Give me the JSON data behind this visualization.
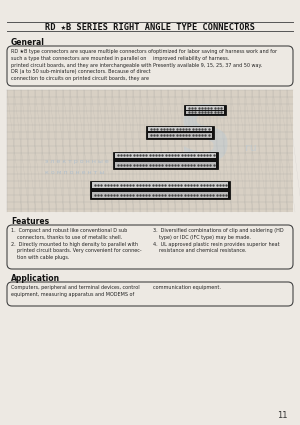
{
  "bg_color": "#ede9e3",
  "title": "RD ★B SERIES RIGHT ANGLE TYPE CONNECTORS",
  "title_fontsize": 6.5,
  "page_number": "11",
  "general_heading": "General",
  "general_text_left": "RD ★B type connectors are square multiple connectors of\nsuch a type that connectors are mounted in parallel on\nprinted circuit boards, and they are interchangeable with\nDR (a to 50 sub-miniature) connectors. Because of direct\nconnection to circuits on printed circuit boards, they are",
  "general_text_right": "optimized for labor saving of harness work and for\nimproved reliability of harness.\nPresently available 9, 15, 25, 37 and 50 way.",
  "features_heading": "Features",
  "features_text_left": "1.  Compact and robust like conventional D sub\n    connectors, thanks to use of metallic shell.\n2.  Directly mounted to high density to parallel with\n    printed circuit boards. Very convenient for connec-\n    tion with cable plugs.",
  "features_text_right": "3.  Diversified combinations of clip and soldering (HD\n    type) or IDC (IFC type) may be made.\n4.  UL approved plastic resin provides superior heat\n    resistance and chemical resistance.",
  "application_heading": "Application",
  "application_text_left": "Computers, peripheral and terminal devices, control\nequipment, measuring apparatus and MODEMS of",
  "application_text_right": "communication equipment.",
  "watermark_lines": [
    "э л е к т р о н н ы е",
    "к о м п о н е н т ы"
  ],
  "watermark_color": "#aabdce",
  "logo_color": "#b8cad8",
  "grid_color": "#999999",
  "grid_light_color": "#bbbbbb"
}
